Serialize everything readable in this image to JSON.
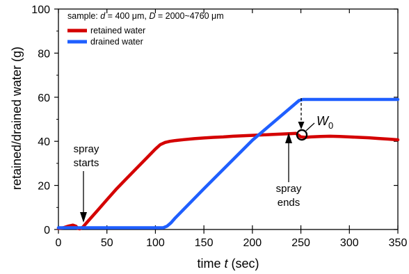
{
  "chart_data": {
    "type": "line",
    "xlabel": "time t (sec)",
    "ylabel": "retained/drained water (g)",
    "xlim": [
      0,
      350
    ],
    "ylim": [
      0,
      100
    ],
    "x_ticks": [
      0,
      50,
      100,
      150,
      200,
      250,
      300,
      350
    ],
    "y_ticks": [
      0,
      20,
      40,
      60,
      80,
      100
    ],
    "grid": false,
    "legend": {
      "placement": "top-left",
      "header": "sample: d = 400 μm, D = 2000~4760 μm",
      "entries": [
        "retained water",
        "drained water"
      ]
    },
    "series": [
      {
        "name": "retained water",
        "color": "#d40000",
        "x": [
          0,
          5,
          10,
          15,
          18,
          20,
          22,
          25,
          30,
          40,
          50,
          60,
          70,
          80,
          90,
          100,
          105,
          110,
          115,
          120,
          130,
          140,
          150,
          160,
          170,
          180,
          190,
          200,
          210,
          220,
          230,
          240,
          245,
          250,
          255,
          260,
          270,
          280,
          290,
          300,
          310,
          320,
          330,
          340,
          350
        ],
        "y": [
          0.5,
          0.8,
          1.5,
          2.0,
          1.5,
          0.5,
          0.3,
          1.0,
          3.5,
          8.5,
          13.5,
          18.5,
          23.0,
          27.5,
          32.0,
          36.5,
          38.5,
          39.5,
          40.0,
          40.3,
          40.8,
          41.2,
          41.5,
          41.8,
          42.0,
          42.3,
          42.5,
          42.7,
          42.9,
          43.1,
          43.3,
          43.5,
          43.6,
          42.0,
          41.8,
          42.0,
          42.2,
          42.3,
          42.2,
          42.0,
          41.8,
          41.6,
          41.3,
          41.0,
          40.7
        ]
      },
      {
        "name": "drained water",
        "color": "#1f5fff",
        "x": [
          0,
          20,
          40,
          60,
          80,
          100,
          108,
          112,
          116,
          120,
          150,
          200,
          248,
          252,
          256,
          260,
          280,
          300,
          320,
          350
        ],
        "y": [
          0.8,
          0.8,
          0.8,
          0.8,
          0.8,
          0.8,
          0.8,
          1.5,
          3.0,
          5.0,
          18.5,
          40.5,
          58.5,
          59.0,
          59.0,
          59.0,
          59.0,
          59.0,
          59.0,
          59.0
        ]
      }
    ],
    "annotations": [
      {
        "text_lines": [
          "spray",
          "starts"
        ],
        "x": 20,
        "y": 0
      },
      {
        "text_lines": [
          "spray",
          "ends"
        ],
        "x": 245,
        "y": 43.6
      },
      {
        "text": "W",
        "subscript": "0",
        "x": 257,
        "y": 41
      }
    ]
  }
}
